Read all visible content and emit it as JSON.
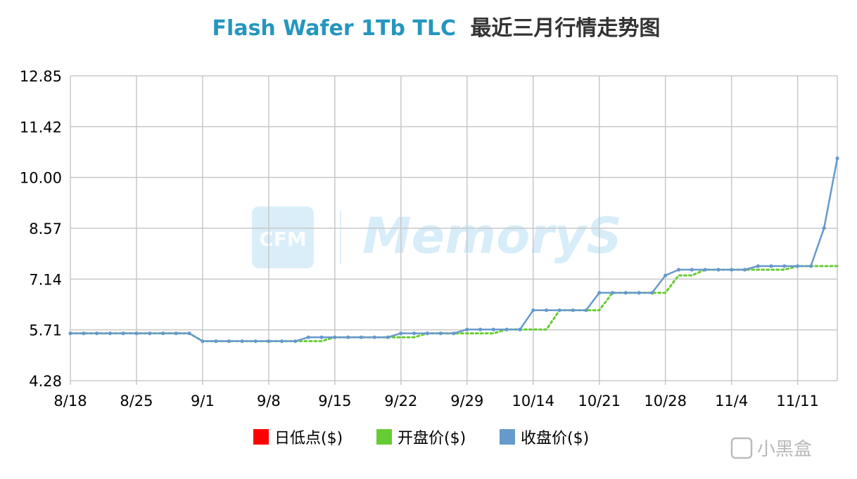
{
  "title_en": "Flash Wafer 1Tb TLC",
  "title_cn": "最近三月行情走势图",
  "title_colors": {
    "en": "#2596be",
    "cn": "#333333"
  },
  "watermark": {
    "logo": "CFM",
    "text": "MemoryS"
  },
  "corner_watermark": "小黑盒",
  "chart_data": {
    "type": "line",
    "title": "Flash Wafer 1Tb TLC 最近三月行情走势图",
    "ylim": [
      4.28,
      12.85
    ],
    "yticks": [
      "12.85",
      "11.42",
      "10.00",
      "8.57",
      "7.14",
      "5.71",
      "4.28"
    ],
    "xticks": [
      "8/18",
      "8/25",
      "9/1",
      "9/8",
      "9/15",
      "9/22",
      "9/29",
      "10/14",
      "10/21",
      "10/28",
      "11/4",
      "11/11"
    ],
    "grid": true,
    "legend_position": "bottom",
    "legend": [
      {
        "name": "日低点($)",
        "color": "#ff0000"
      },
      {
        "name": "开盘价($)",
        "color": "#66cc33"
      },
      {
        "name": "收盘价($)",
        "color": "#6699cc"
      }
    ],
    "x_index": [
      0,
      1,
      2,
      3,
      4,
      5,
      6,
      7,
      8,
      9,
      10,
      11,
      12,
      13,
      14,
      15,
      16,
      17,
      18,
      19,
      20,
      21,
      22,
      23,
      24,
      25,
      26,
      27,
      28,
      29,
      30,
      31,
      32,
      33,
      34,
      35,
      36,
      37,
      38,
      39,
      40,
      41,
      42,
      43,
      44,
      45,
      46,
      47,
      48,
      49,
      50,
      51,
      52,
      53,
      54,
      55,
      56,
      57,
      58
    ],
    "series": [
      {
        "name": "开盘价($)",
        "color": "#66cc33",
        "style": "dotted",
        "values": [
          5.61,
          5.61,
          5.61,
          5.61,
          5.61,
          5.61,
          5.61,
          5.61,
          5.61,
          5.61,
          5.39,
          5.39,
          5.39,
          5.39,
          5.39,
          5.39,
          5.39,
          5.39,
          5.39,
          5.39,
          5.5,
          5.5,
          5.5,
          5.5,
          5.5,
          5.5,
          5.5,
          5.61,
          5.61,
          5.61,
          5.61,
          5.61,
          5.61,
          5.72,
          5.72,
          5.72,
          5.72,
          6.26,
          6.26,
          6.26,
          6.26,
          6.75,
          6.75,
          6.75,
          6.75,
          6.75,
          7.24,
          7.24,
          7.4,
          7.4,
          7.4,
          7.4,
          7.4,
          7.4,
          7.4,
          7.5,
          7.5,
          7.5,
          7.5
        ]
      },
      {
        "name": "收盘价($)",
        "color": "#6699cc",
        "style": "solid",
        "values": [
          5.61,
          5.61,
          5.61,
          5.61,
          5.61,
          5.61,
          5.61,
          5.61,
          5.61,
          5.61,
          5.39,
          5.39,
          5.39,
          5.39,
          5.39,
          5.39,
          5.39,
          5.39,
          5.5,
          5.5,
          5.5,
          5.5,
          5.5,
          5.5,
          5.5,
          5.61,
          5.61,
          5.61,
          5.61,
          5.61,
          5.72,
          5.72,
          5.72,
          5.72,
          5.72,
          6.26,
          6.26,
          6.26,
          6.26,
          6.26,
          6.75,
          6.75,
          6.75,
          6.75,
          6.75,
          7.24,
          7.4,
          7.4,
          7.4,
          7.4,
          7.4,
          7.4,
          7.5,
          7.5,
          7.5,
          7.5,
          7.5,
          8.57,
          10.53
        ]
      }
    ]
  }
}
